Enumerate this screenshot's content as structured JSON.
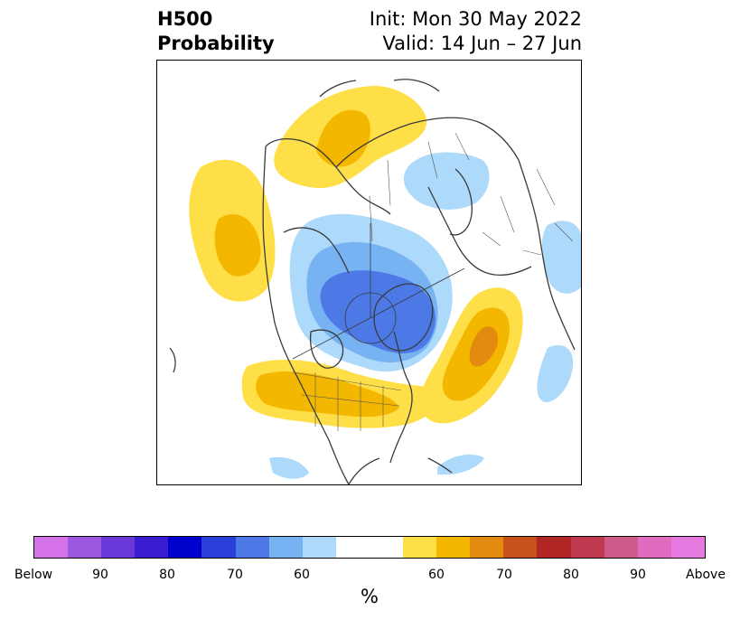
{
  "title": {
    "line1": "H500",
    "line2": "Probability",
    "init": "Init: Mon 30 May 2022",
    "valid": "Valid: 14 Jun – 27 Jun"
  },
  "colorbar": {
    "unit": "%",
    "colors": [
      "#d672e8",
      "#9b57e0",
      "#6a37d8",
      "#3a1dd0",
      "#0000cc",
      "#2a3ed8",
      "#4d79e6",
      "#77b3f3",
      "#add9fa",
      "#ffffff",
      "#ffdf47",
      "#f4b700",
      "#e38b0e",
      "#c65119",
      "#b12523",
      "#c03a4f",
      "#d05a8a",
      "#e06bbf",
      "#e77ae0"
    ],
    "ticks": [
      {
        "label": "Below"
      },
      {
        "label": "90"
      },
      {
        "label": "80"
      },
      {
        "label": "70"
      },
      {
        "label": "60"
      },
      {
        "label": "60"
      },
      {
        "label": "70"
      },
      {
        "label": "80"
      },
      {
        "label": "90"
      },
      {
        "label": "Above"
      }
    ]
  },
  "map": {
    "colors": {
      "above_60": "#ffdf47",
      "above_70": "#f4b700",
      "above_80": "#e38b0e",
      "below_60": "#add9fa",
      "below_70": "#77b3f3",
      "below_80": "#4d79e6",
      "coast": "#3a3a3a"
    }
  }
}
